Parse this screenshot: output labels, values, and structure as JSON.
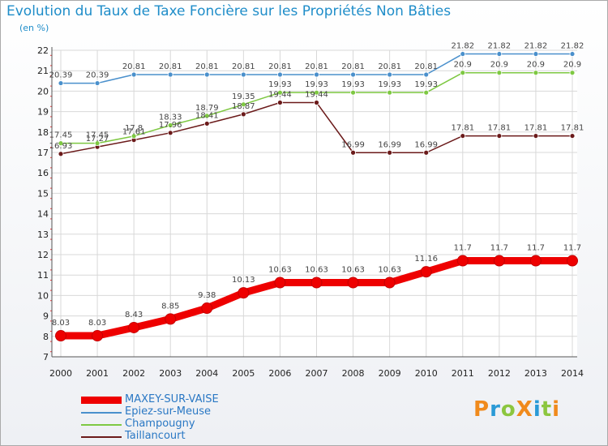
{
  "chart_data": {
    "type": "line",
    "title": "Evolution du Taux de Taxe Foncière sur les Propriétés Non Bâties",
    "ylabel": "(en %)",
    "xlabel": "",
    "ylim": [
      7,
      22
    ],
    "yticks": [
      "7",
      "8",
      "9",
      "10",
      "11",
      "12",
      "13",
      "14",
      "15",
      "16",
      "17",
      "18",
      "19",
      "20",
      "21",
      "22"
    ],
    "categories": [
      "2000",
      "2001",
      "2002",
      "2003",
      "2004",
      "2005",
      "2006",
      "2007",
      "2008",
      "2009",
      "2010",
      "2011",
      "2012",
      "2013",
      "2014"
    ],
    "grid": true,
    "legend_position": "bottom-left",
    "series": [
      {
        "name": "Taillancourt",
        "color": "#6b1a1a",
        "values": [
          16.93,
          17.27,
          17.61,
          17.96,
          18.41,
          18.87,
          19.44,
          19.44,
          16.99,
          16.99,
          16.99,
          17.81,
          17.81,
          17.81,
          17.81
        ],
        "labels": [
          "16.93",
          "17.27",
          "17.61",
          "17.96",
          "18.41",
          "18.87",
          "19.44",
          "19.44",
          "16.99",
          "16.99",
          "16.99",
          "17.81",
          "17.81",
          "17.81",
          "17.81"
        ]
      },
      {
        "name": "Champougny",
        "color": "#7ec842",
        "values": [
          17.45,
          17.45,
          17.8,
          18.33,
          18.79,
          19.35,
          19.93,
          19.93,
          19.93,
          19.93,
          19.93,
          20.9,
          20.9,
          20.9,
          20.9
        ],
        "labels": [
          "17.45",
          "17.45",
          "17.8",
          "18.33",
          "18.79",
          "19.35",
          "19.93",
          "19.93",
          "19.93",
          "19.93",
          "19.93",
          "20.9",
          "20.9",
          "20.9",
          "20.9"
        ]
      },
      {
        "name": "Epiez-sur-Meuse",
        "color": "#4a90cc",
        "values": [
          20.39,
          20.39,
          20.81,
          20.81,
          20.81,
          20.81,
          20.81,
          20.81,
          20.81,
          20.81,
          20.81,
          21.82,
          21.82,
          21.82,
          21.82
        ],
        "labels": [
          "20.39",
          "20.39",
          "20.81",
          "20.81",
          "20.81",
          "20.81",
          "20.81",
          "20.81",
          "20.81",
          "20.81",
          "20.81",
          "21.82",
          "21.82",
          "21.82",
          "21.82"
        ]
      },
      {
        "name": "MAXEY-SUR-VAISE",
        "color": "#ee0000",
        "values": [
          8.03,
          8.03,
          8.43,
          8.85,
          9.38,
          10.13,
          10.63,
          10.63,
          10.63,
          10.63,
          11.16,
          11.7,
          11.7,
          11.7,
          11.7
        ],
        "labels": [
          "8.03",
          "8.03",
          "8.43",
          "8.85",
          "9.38",
          "10.13",
          "10.63",
          "10.63",
          "10.63",
          "10.63",
          "11.16",
          "11.7",
          "11.7",
          "11.7",
          "11.7"
        ]
      }
    ],
    "legend_order": [
      "MAXEY-SUR-VAISE",
      "Epiez-sur-Meuse",
      "Champougny",
      "Taillancourt"
    ]
  },
  "brand": {
    "text": "ProXiti",
    "colors": [
      "#f08a1c",
      "#2a9ad6",
      "#8cc63f",
      "#f08a1c",
      "#2a9ad6",
      "#8cc63f",
      "#f08a1c"
    ]
  }
}
